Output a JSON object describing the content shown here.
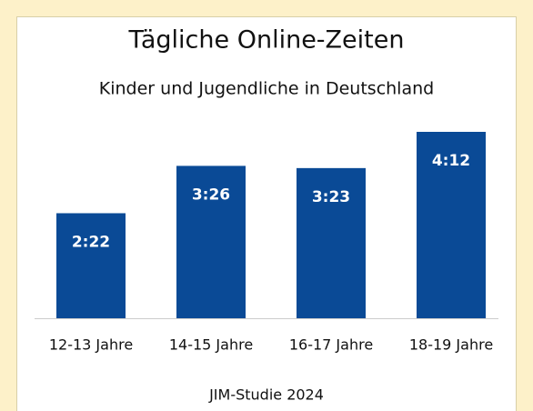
{
  "chart_data": {
    "type": "bar",
    "title": "Tägliche Online-Zeiten",
    "subtitle": "Kinder und Jugendliche in Deutschland",
    "categories": [
      "12-13 Jahre",
      "14-15 Jahre",
      "16-17 Jahre",
      "18-19 Jahre"
    ],
    "values": [
      142,
      206,
      203,
      252
    ],
    "value_labels": [
      "2:22",
      "3:26",
      "3:23",
      "4:12"
    ],
    "color": "#0a4a96",
    "source": "JIM-Studie 2024"
  }
}
